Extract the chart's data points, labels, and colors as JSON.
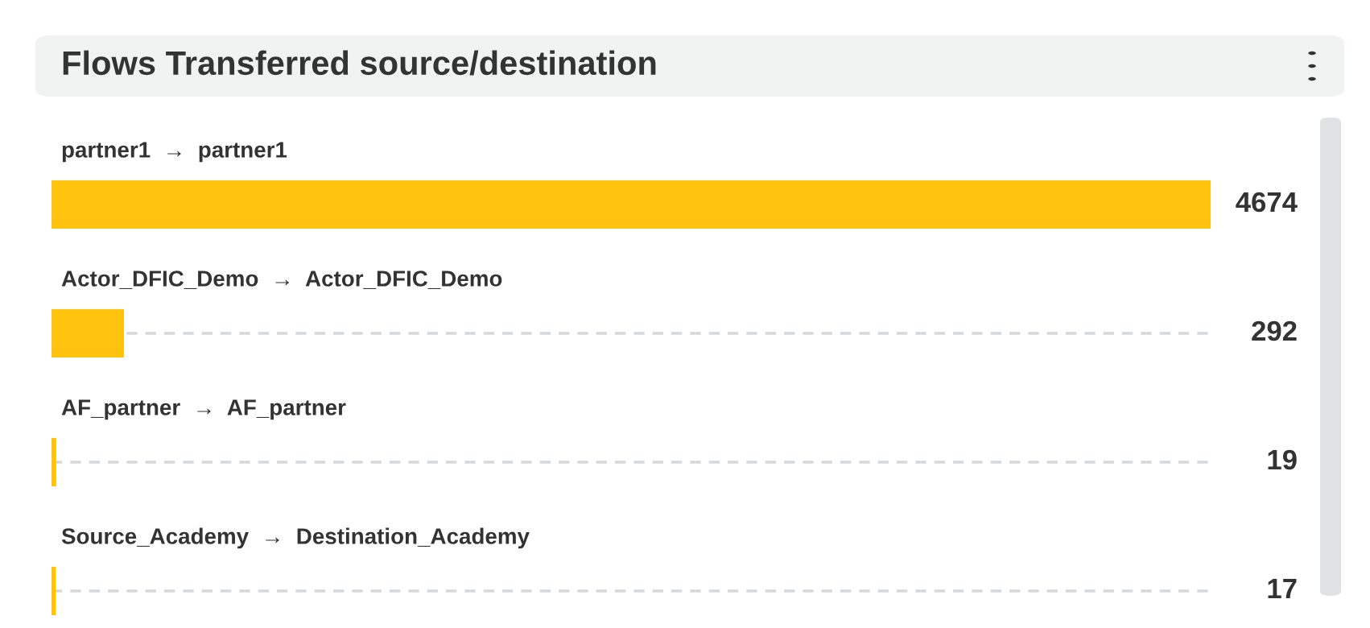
{
  "chart_data": {
    "type": "bar",
    "orientation": "horizontal",
    "title": "Flows Transferred source/destination",
    "categories": [
      "partner1  →  partner1",
      "Actor_DFIC_Demo  →  Actor_DFIC_Demo",
      "AF_partner  →  AF_partner",
      "Source_Academy  →  Destination_Academy"
    ],
    "values": [
      4674,
      292,
      19,
      17
    ],
    "color": "#ffc20e",
    "data_labels": true
  }
}
